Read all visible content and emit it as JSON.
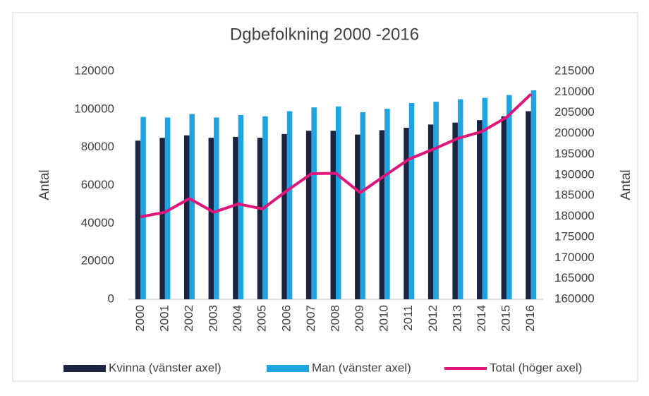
{
  "chart_data": {
    "type": "bar",
    "title": "Dgbefolkning 2000 -2016",
    "ylabel": "Antal",
    "y2label": "Antal",
    "categories": [
      "2000",
      "2001",
      "2002",
      "2003",
      "2004",
      "2005",
      "2006",
      "2007",
      "2008",
      "2009",
      "2010",
      "2011",
      "2012",
      "2013",
      "2014",
      "2015",
      "2016"
    ],
    "series": [
      {
        "name": "Kvinna (vänster axel)",
        "color": "#1b2541",
        "values": [
          83500,
          85000,
          86300,
          85000,
          85500,
          85000,
          87000,
          88700,
          88700,
          86700,
          89000,
          90300,
          92000,
          93000,
          94300,
          96300,
          99000
        ]
      },
      {
        "name": "Man (vänster axel)",
        "color": "#1fa3e1",
        "values": [
          96000,
          95700,
          97500,
          95700,
          97000,
          96300,
          99000,
          101000,
          101500,
          98500,
          100300,
          103300,
          104000,
          105300,
          106000,
          107500,
          110000
        ]
      },
      {
        "name": "Total (höger axel)",
        "color": "#e0157a",
        "type": "line",
        "axis": "y2",
        "values": [
          179900,
          181000,
          184300,
          181000,
          183000,
          181800,
          186200,
          190300,
          190400,
          185700,
          189800,
          193800,
          196200,
          198800,
          200500,
          203900,
          209500
        ]
      }
    ],
    "ylim": [
      0,
      120000
    ],
    "yticks": [
      0,
      20000,
      40000,
      60000,
      80000,
      100000,
      120000
    ],
    "y2lim": [
      160000,
      215000
    ],
    "y2ticks": [
      160000,
      165000,
      170000,
      175000,
      180000,
      185000,
      190000,
      195000,
      200000,
      205000,
      210000,
      215000
    ],
    "grid": false,
    "legend": "bottom"
  }
}
